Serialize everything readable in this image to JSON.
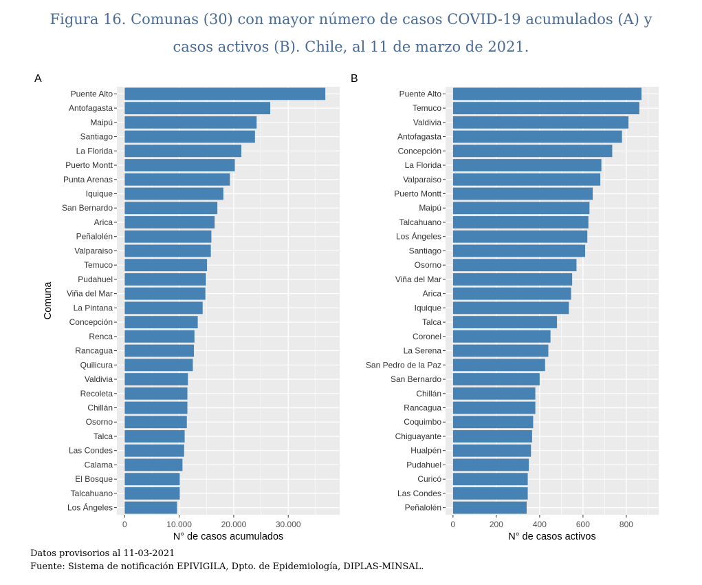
{
  "header": {
    "title_line1": "Figura 16. Comunas (30) con mayor número de casos COVID-19 acumulados (A) y",
    "title_line2": "casos activos (B). Chile, al 11 de marzo de 2021."
  },
  "footer": {
    "note": "Datos provisorios al 11-03-2021",
    "source": "Fuente: Sistema de notificación EPIVIGILA, Dpto. de Epidemiología, DIPLAS-MINSAL."
  },
  "colors": {
    "bar": "#4682B4",
    "panel_bg": "#EBEBEB",
    "grid": "#FFFFFF",
    "title": "#4a6a94"
  },
  "chart_data": [
    {
      "type": "bar",
      "orientation": "horizontal",
      "panel": "A",
      "ylabel": "Comuna",
      "xlabel": "N° de casos acumulados",
      "xlim": [
        0,
        38000
      ],
      "xticks": [
        0,
        10000,
        20000,
        30000
      ],
      "xtick_labels": [
        "0",
        "10.000",
        "20.000",
        "30.000"
      ],
      "grid": true,
      "categories": [
        "Puente Alto",
        "Antofagasta",
        "Maipú",
        "Santiago",
        "La Florida",
        "Puerto Montt",
        "Punta Arenas",
        "Iquique",
        "San Bernardo",
        "Arica",
        "Peñalolén",
        "Valparaiso",
        "Temuco",
        "Pudahuel",
        "Viña del Mar",
        "La Pintana",
        "Concepción",
        "Renca",
        "Rancagua",
        "Quilicura",
        "Valdivia",
        "Recoleta",
        "Chillán",
        "Osorno",
        "Talca",
        "Las Condes",
        "Calama",
        "El Bosque",
        "Talcahuano",
        "Los Ángeles"
      ],
      "values": [
        36800,
        26700,
        24200,
        23900,
        21400,
        20200,
        19300,
        18100,
        17000,
        16500,
        15900,
        15800,
        15100,
        14900,
        14800,
        14300,
        13400,
        12800,
        12700,
        12500,
        11600,
        11500,
        11500,
        11400,
        11000,
        10900,
        10600,
        10100,
        10100,
        9600
      ]
    },
    {
      "type": "bar",
      "orientation": "horizontal",
      "panel": "B",
      "ylabel": "",
      "xlabel": "N° de casos activos",
      "xlim": [
        0,
        915
      ],
      "xticks": [
        0,
        200,
        400,
        600,
        800
      ],
      "xtick_labels": [
        "0",
        "200",
        "400",
        "600",
        "800"
      ],
      "grid": true,
      "categories": [
        "Puente Alto",
        "Temuco",
        "Valdivia",
        "Antofagasta",
        "Concepción",
        "La Florida",
        "Valparaiso",
        "Puerto Montt",
        "Maipú",
        "Talcahuano",
        "Los Ángeles",
        "Santiago",
        "Osorno",
        "Viña del Mar",
        "Arica",
        "Iquique",
        "Talca",
        "Coronel",
        "La Serena",
        "San Pedro de la Paz",
        "San Bernardo",
        "Chillán",
        "Rancagua",
        "Coquimbo",
        "Chiguayante",
        "Hualpén",
        "Pudahuel",
        "Curicó",
        "Las Condes",
        "Peñalolén"
      ],
      "values": [
        870,
        860,
        810,
        780,
        735,
        685,
        680,
        645,
        630,
        625,
        620,
        610,
        570,
        550,
        545,
        535,
        480,
        450,
        440,
        425,
        400,
        380,
        380,
        370,
        365,
        360,
        350,
        345,
        345,
        340
      ]
    }
  ]
}
